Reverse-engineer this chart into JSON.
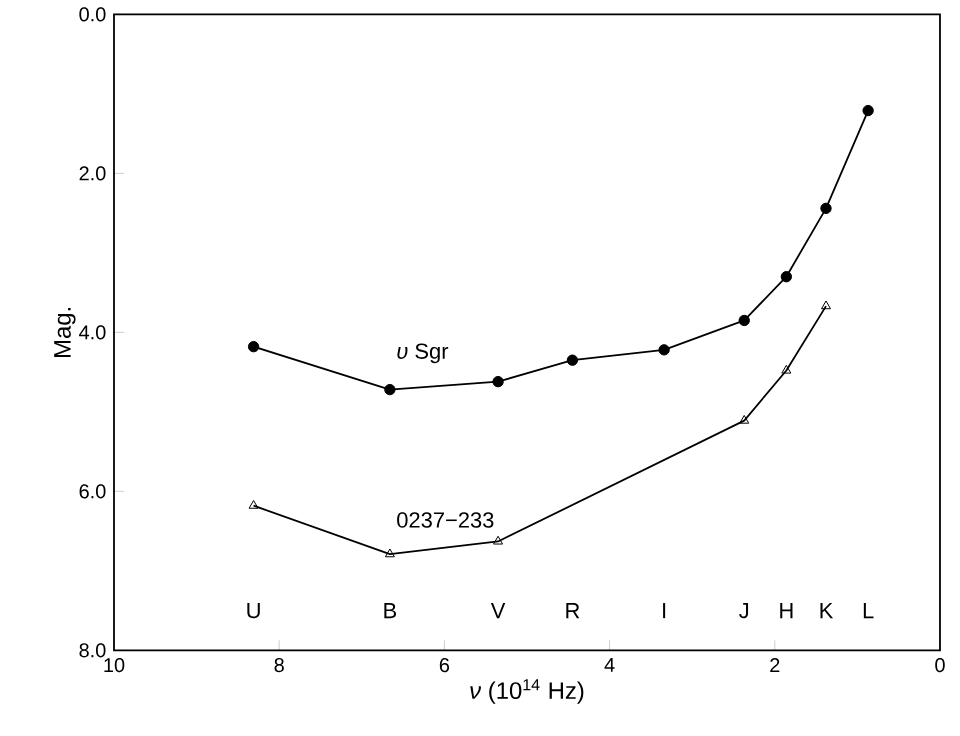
{
  "chart_data": {
    "type": "line",
    "xlabel": "*ν*  (10$^{14}$ Hz)",
    "ylabel": "Mag.",
    "xlim": [
      10,
      0
    ],
    "ylim": [
      8,
      0
    ],
    "xticks": [
      10,
      8,
      6,
      4,
      2,
      0
    ],
    "yticks": [
      {
        "value": 0,
        "label": "0.0"
      },
      {
        "value": 2,
        "label": "2.0"
      },
      {
        "value": 4,
        "label": "4.0"
      },
      {
        "value": 6,
        "label": "6.0"
      },
      {
        "value": 8,
        "label": "8.0"
      }
    ],
    "grid": false,
    "legend": false,
    "line_style": "solid",
    "series": [
      {
        "name": "*υ* Sgr",
        "color": "#000000",
        "marker": "circle",
        "x": [
          8.31,
          6.66,
          5.35,
          4.45,
          3.34,
          2.37,
          1.86,
          1.38,
          0.87
        ],
        "values": [
          4.18,
          4.72,
          4.62,
          4.35,
          4.22,
          3.85,
          3.3,
          2.44,
          1.21
        ]
      },
      {
        "name": "0237−233",
        "color": "#000000",
        "marker": "triangle",
        "x": [
          8.31,
          6.66,
          5.35,
          2.37,
          1.86,
          1.38
        ],
        "values": [
          6.18,
          6.79,
          6.63,
          5.11,
          4.48,
          3.67
        ]
      }
    ],
    "annotations": [
      "U",
      "B",
      "V",
      "R",
      "I",
      "J",
      "H",
      "K",
      "L"
    ]
  }
}
